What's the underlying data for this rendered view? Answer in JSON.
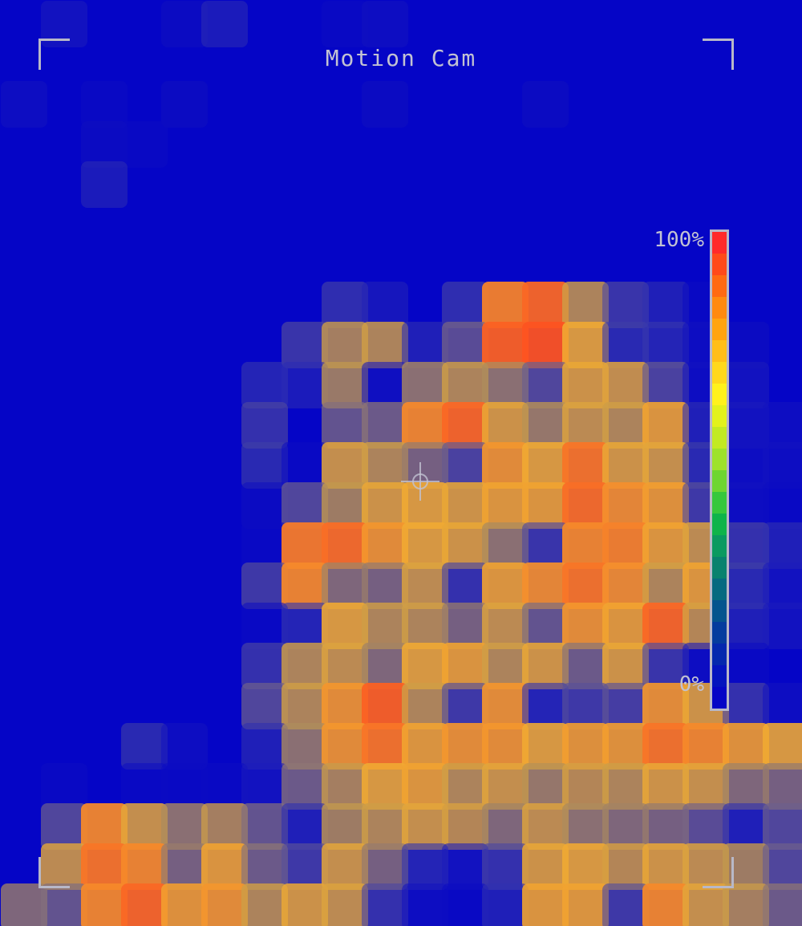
{
  "app": {
    "title": "Motion Cam"
  },
  "scale": {
    "max_label": "100%",
    "min_label": "0%",
    "colors": [
      "#ff2a2a",
      "#ff4a1a",
      "#ff6a12",
      "#ff8a10",
      "#ffa410",
      "#ffbe18",
      "#ffd81c",
      "#fff21c",
      "#e2f21c",
      "#c2ea22",
      "#9ee22a",
      "#6ed630",
      "#36c83c",
      "#0eb44a",
      "#0a9a60",
      "#08826e",
      "#066a80",
      "#04548e",
      "#043c9e",
      "#0428ae",
      "#0414be",
      "#0505c6"
    ]
  },
  "heatmap": {
    "type": "heatmap",
    "background": "#0505c6",
    "cols": 20,
    "rows": 23,
    "low_color": "#0505c6",
    "values": [
      [
        0,
        0.06,
        0,
        0,
        0.03,
        0.1,
        0,
        0,
        0.02,
        0.04,
        0,
        0,
        0,
        0,
        0,
        0,
        0,
        0,
        0,
        0
      ],
      [
        0,
        0,
        0,
        0,
        0,
        0,
        0,
        0,
        0,
        0,
        0,
        0,
        0,
        0,
        0,
        0,
        0,
        0,
        0,
        0
      ],
      [
        0.04,
        0,
        0.02,
        0,
        0.03,
        0,
        0,
        0,
        0,
        0.03,
        0,
        0,
        0,
        0.03,
        0,
        0,
        0,
        0,
        0,
        0
      ],
      [
        0,
        0,
        0.03,
        0.02,
        0,
        0,
        0,
        0,
        0,
        0,
        0,
        0,
        0,
        0,
        0,
        0,
        0,
        0,
        0,
        0
      ],
      [
        0,
        0,
        0.1,
        0,
        0,
        0,
        0,
        0,
        0,
        0,
        0,
        0,
        0,
        0,
        0,
        0,
        0,
        0,
        0,
        0
      ],
      [
        0,
        0,
        0,
        0,
        0,
        0,
        0,
        0,
        0,
        0,
        0,
        0,
        0,
        0,
        0,
        0,
        0,
        0,
        0,
        0
      ],
      [
        0,
        0,
        0,
        0,
        0,
        0,
        0,
        0,
        0,
        0,
        0,
        0,
        0,
        0,
        0,
        0,
        0,
        0,
        0,
        0
      ],
      [
        0,
        0,
        0,
        0,
        0,
        0,
        0,
        0,
        0.18,
        0.08,
        0,
        0.18,
        0.72,
        0.8,
        0.5,
        0.22,
        0.12,
        0.02,
        0,
        0
      ],
      [
        0,
        0,
        0,
        0,
        0,
        0,
        0,
        0.22,
        0.48,
        0.5,
        0.12,
        0.32,
        0.82,
        0.86,
        0.6,
        0.16,
        0.14,
        0.04,
        0.03,
        0
      ],
      [
        0,
        0,
        0,
        0,
        0,
        0,
        0.14,
        0.1,
        0.45,
        0.05,
        0.42,
        0.5,
        0.42,
        0.3,
        0.58,
        0.55,
        0.28,
        0.04,
        0.06,
        0
      ],
      [
        0,
        0,
        0,
        0,
        0,
        0,
        0.2,
        0,
        0.34,
        0.36,
        0.7,
        0.8,
        0.58,
        0.44,
        0.54,
        0.5,
        0.62,
        0.12,
        0.06,
        0.04
      ],
      [
        0,
        0,
        0,
        0,
        0,
        0,
        0.16,
        0.02,
        0.56,
        0.5,
        0.38,
        0.28,
        0.66,
        0.6,
        0.76,
        0.58,
        0.56,
        0.16,
        0.04,
        0.04
      ],
      [
        0,
        0,
        0,
        0,
        0,
        0,
        0.03,
        0.3,
        0.46,
        0.58,
        0.6,
        0.58,
        0.62,
        0.62,
        0.78,
        0.68,
        0.64,
        0.24,
        0.04,
        0.02
      ],
      [
        0,
        0,
        0,
        0,
        0,
        0,
        0.02,
        0.74,
        0.78,
        0.66,
        0.6,
        0.58,
        0.42,
        0.22,
        0.7,
        0.72,
        0.62,
        0.54,
        0.2,
        0.12
      ],
      [
        0,
        0,
        0,
        0,
        0,
        0,
        0.24,
        0.7,
        0.4,
        0.38,
        0.54,
        0.2,
        0.62,
        0.68,
        0.76,
        0.68,
        0.5,
        0.62,
        0.16,
        0.06
      ],
      [
        0,
        0,
        0,
        0,
        0,
        0,
        0.02,
        0.14,
        0.6,
        0.5,
        0.5,
        0.38,
        0.54,
        0.34,
        0.66,
        0.62,
        0.8,
        0.52,
        0.12,
        0.06
      ],
      [
        0,
        0,
        0,
        0,
        0,
        0,
        0.2,
        0.5,
        0.54,
        0.4,
        0.6,
        0.62,
        0.5,
        0.58,
        0.36,
        0.58,
        0.22,
        0.04,
        0.02,
        0
      ],
      [
        0,
        0,
        0,
        0,
        0,
        0,
        0.3,
        0.5,
        0.66,
        0.82,
        0.5,
        0.24,
        0.66,
        0.14,
        0.24,
        0.26,
        0.66,
        0.58,
        0.2,
        0.04
      ],
      [
        0,
        0,
        0,
        0.16,
        0.04,
        0,
        0.12,
        0.42,
        0.66,
        0.76,
        0.62,
        0.66,
        0.66,
        0.6,
        0.64,
        0.64,
        0.76,
        0.7,
        0.64,
        0.6
      ],
      [
        0,
        0.02,
        0,
        0.02,
        0.02,
        0.02,
        0.06,
        0.36,
        0.48,
        0.6,
        0.62,
        0.5,
        0.56,
        0.44,
        0.52,
        0.5,
        0.58,
        0.56,
        0.4,
        0.38
      ],
      [
        0,
        0.3,
        0.7,
        0.56,
        0.42,
        0.48,
        0.34,
        0.12,
        0.46,
        0.5,
        0.56,
        0.52,
        0.4,
        0.54,
        0.42,
        0.4,
        0.38,
        0.32,
        0.12,
        0.3
      ],
      [
        0,
        0.54,
        0.76,
        0.7,
        0.38,
        0.62,
        0.36,
        0.24,
        0.56,
        0.38,
        0.14,
        0.06,
        0.2,
        0.58,
        0.6,
        0.52,
        0.58,
        0.54,
        0.46,
        0.3
      ],
      [
        0.4,
        0.34,
        0.7,
        0.8,
        0.64,
        0.66,
        0.5,
        0.58,
        0.54,
        0.2,
        0.04,
        0.02,
        0.12,
        0.62,
        0.62,
        0.24,
        0.7,
        0.56,
        0.48,
        0.36
      ]
    ]
  }
}
